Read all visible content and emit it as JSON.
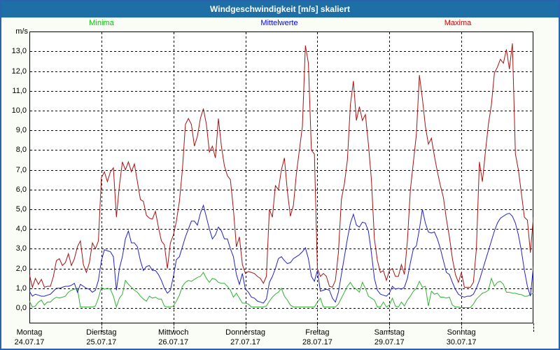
{
  "window": {
    "title": "Windgeschwindigkeit [m/s] skaliert"
  },
  "legend": [
    {
      "label": "Minima",
      "color": "#00c800"
    },
    {
      "label": "Mittelwerte",
      "color": "#0000ff"
    },
    {
      "label": "Maxima",
      "color": "#d40000"
    }
  ],
  "y_axis": {
    "unit": "m/s",
    "ticks": [
      "13,0",
      "12,0",
      "11,0",
      "10,0",
      "9,0",
      "8,0",
      "7,0",
      "6,0",
      "5,0",
      "4,0",
      "3,0",
      "2,0",
      "1,0",
      "0,0"
    ]
  },
  "x_axis": {
    "days": [
      {
        "name": "Montag",
        "date": "24.07.17"
      },
      {
        "name": "Dienstag",
        "date": "25.07.17"
      },
      {
        "name": "Mittwoch",
        "date": "26.07.17"
      },
      {
        "name": "Donnerstag",
        "date": "27.07.17"
      },
      {
        "name": "Freitag",
        "date": "28.07.17"
      },
      {
        "name": "Samstag",
        "date": "29.07.17"
      },
      {
        "name": "Sonntag",
        "date": "30.07.17"
      }
    ]
  },
  "chart_data": {
    "type": "line",
    "title": "Windgeschwindigkeit [m/s] skaliert",
    "xlabel": "",
    "ylabel": "m/s",
    "ylim": [
      -0.75,
      14
    ],
    "grid": "dashed, horizontal every 1 m/s (0-13), vertical at each day boundary",
    "legend_position": "top",
    "sampling": "hourly, 24 points per day for 7 days plus final endpoint (169 points)",
    "categories_days": [
      "Montag 24.07.17",
      "Dienstag 25.07.17",
      "Mittwoch 26.07.17",
      "Donnerstag 27.07.17",
      "Freitag 28.07.17",
      "Samstag 29.07.17",
      "Sonntag 30.07.17"
    ],
    "series": [
      {
        "name": "Minima",
        "color": "#2eb42e",
        "values": [
          0.35,
          0.05,
          0.1,
          0.3,
          0.4,
          0.15,
          0.3,
          0.3,
          0.45,
          0.55,
          0.5,
          0.55,
          0.6,
          0.8,
          0.9,
          0.95,
          1.0,
          0.05,
          0.05,
          0.05,
          0.05,
          0.05,
          0.1,
          0.5,
          1.05,
          0.95,
          1.0,
          0.95,
          0.6,
          0.05,
          0.5,
          0.7,
          1.4,
          1.2,
          1.05,
          0.9,
          0.8,
          0.6,
          0.45,
          0.35,
          0.6,
          0.5,
          0.55,
          0.45,
          0.45,
          0.1,
          0.05,
          0.05,
          0.1,
          0.35,
          0.65,
          1.1,
          1.3,
          1.4,
          1.35,
          1.45,
          1.55,
          1.6,
          1.8,
          1.5,
          1.3,
          1.5,
          1.45,
          1.3,
          1.25,
          1.25,
          1.1,
          0.9,
          0.55,
          0.75,
          0.5,
          0.25,
          0.25,
          0.2,
          0.05,
          0.05,
          0.05,
          0.05,
          0.05,
          0.1,
          0.35,
          0.55,
          0.7,
          0.8,
          1.0,
          0.6,
          0.4,
          0.15,
          0.05,
          0.05,
          0.05,
          0.05,
          0.05,
          0.05,
          0.05,
          0.05,
          0.3,
          0.5,
          0.05,
          0.05,
          0.05,
          0.05,
          0.05,
          0.2,
          0.5,
          0.8,
          1.1,
          1.3,
          1.05,
          0.95,
          0.8,
          1.3,
          1.0,
          0.6,
          0.5,
          0.4,
          0.05,
          0.05,
          0.3,
          0.05,
          0.15,
          0.5,
          0.1,
          0.05,
          0.3,
          0.1,
          0.4,
          0.6,
          0.85,
          1.0,
          1.35,
          1.05,
          1.1,
          0.1,
          0.85,
          0.7,
          0.75,
          0.55,
          0.55,
          0.5,
          0.55,
          0.15,
          0.05,
          0.05,
          0.02,
          0.02,
          0.02,
          0.02,
          0.2,
          0.45,
          0.6,
          0.75,
          0.8,
          0.9,
          1.5,
          1.1,
          1.3,
          1.35,
          1.2,
          0.8,
          0.8,
          0.75,
          0.75,
          0.7,
          0.68,
          0.6,
          0.6,
          0.68,
          0.75
        ]
      },
      {
        "name": "Mittelwerte",
        "color": "#2121cc",
        "values": [
          0.85,
          0.6,
          0.7,
          0.65,
          0.6,
          0.6,
          0.65,
          0.7,
          0.85,
          1.0,
          1.0,
          1.05,
          1.1,
          1.1,
          1.15,
          1.25,
          0.8,
          1.2,
          1.1,
          1.0,
          0.95,
          0.8,
          0.9,
          1.4,
          2.4,
          2.95,
          2.9,
          2.85,
          2.6,
          0.9,
          2.0,
          2.6,
          3.5,
          3.9,
          3.3,
          3.3,
          3.1,
          2.4,
          1.9,
          2.1,
          2.15,
          1.9,
          1.9,
          1.7,
          1.4,
          1.0,
          0.75,
          0.9,
          1.6,
          2.45,
          2.6,
          3.1,
          3.6,
          4.0,
          4.4,
          4.4,
          4.2,
          4.8,
          5.2,
          4.6,
          4.0,
          3.5,
          3.7,
          4.1,
          3.9,
          3.5,
          3.5,
          3.0,
          2.6,
          1.7,
          1.2,
          1.75,
          0.95,
          0.8,
          0.55,
          0.5,
          0.35,
          0.3,
          0.25,
          0.45,
          1.3,
          1.6,
          2.0,
          2.5,
          2.6,
          2.4,
          2.25,
          2.3,
          2.5,
          2.6,
          2.7,
          2.85,
          3.05,
          2.5,
          1.6,
          1.35,
          1.9,
          0.85,
          0.9,
          0.95,
          0.9,
          0.5,
          0.3,
          0.8,
          1.7,
          2.6,
          3.5,
          4.3,
          4.75,
          4.2,
          4.1,
          4.35,
          4.3,
          3.9,
          2.8,
          1.5,
          0.9,
          0.7,
          0.65,
          0.6,
          0.75,
          1.1,
          0.95,
          1.0,
          0.95,
          1.05,
          1.5,
          2.3,
          3.0,
          3.15,
          4.0,
          5.0,
          4.3,
          3.85,
          3.8,
          3.85,
          3.5,
          3.0,
          2.4,
          1.8,
          1.7,
          1.3,
          0.95,
          0.7,
          0.6,
          0.55,
          0.6,
          0.6,
          0.7,
          1.0,
          1.4,
          1.9,
          2.4,
          2.9,
          3.4,
          3.9,
          4.3,
          4.55,
          4.65,
          4.75,
          4.8,
          4.65,
          4.3,
          3.7,
          2.9,
          1.9,
          1.1,
          0.6,
          2.1
        ]
      },
      {
        "name": "Maxima",
        "color": "#aa1111",
        "values": [
          1.7,
          1.05,
          1.5,
          1.2,
          1.45,
          1.05,
          1.1,
          1.1,
          1.6,
          2.4,
          2.5,
          2.15,
          2.3,
          2.75,
          2.15,
          2.5,
          3.1,
          3.4,
          2.2,
          1.8,
          2.3,
          3.3,
          3.0,
          3.4,
          6.6,
          6.9,
          6.4,
          6.9,
          7.1,
          4.6,
          6.2,
          7.4,
          7.0,
          7.4,
          6.9,
          7.3,
          6.4,
          5.5,
          5.4,
          4.7,
          4.55,
          4.5,
          4.9,
          4.1,
          3.4,
          3.2,
          2.0,
          3.3,
          3.7,
          4.4,
          5.4,
          7.0,
          9.3,
          9.6,
          9.3,
          8.2,
          8.7,
          9.6,
          10.1,
          9.3,
          7.9,
          8.2,
          7.6,
          9.6,
          8.2,
          7.2,
          6.7,
          6.5,
          5.0,
          3.1,
          3.6,
          2.2,
          1.75,
          1.85,
          1.8,
          1.75,
          1.6,
          1.5,
          1.25,
          1.6,
          5.0,
          4.6,
          6.2,
          6.0,
          7.0,
          7.6,
          5.9,
          4.65,
          5.2,
          6.8,
          8.0,
          9.2,
          13.3,
          12.4,
          8.0,
          7.8,
          2.0,
          1.6,
          1.75,
          1.6,
          1.1,
          1.05,
          1.4,
          2.8,
          5.5,
          6.3,
          7.5,
          10.3,
          11.5,
          9.5,
          10.2,
          9.5,
          9.8,
          8.3,
          6.5,
          3.5,
          2.4,
          1.8,
          1.9,
          1.4,
          1.9,
          2.0,
          1.6,
          1.6,
          2.2,
          1.7,
          3.4,
          6.0,
          7.4,
          8.8,
          11.8,
          10.6,
          9.2,
          8.3,
          8.6,
          7.7,
          6.9,
          6.2,
          5.6,
          4.5,
          3.6,
          2.5,
          1.7,
          1.3,
          1.8,
          1.05,
          1.05,
          1.05,
          1.3,
          3.0,
          7.4,
          6.4,
          7.9,
          9.3,
          10.3,
          11.9,
          12.2,
          12.6,
          12.4,
          13.1,
          12.1,
          13.4,
          7.8,
          7.0,
          5.8,
          4.6,
          4.45,
          2.8,
          4.6
        ]
      }
    ]
  }
}
